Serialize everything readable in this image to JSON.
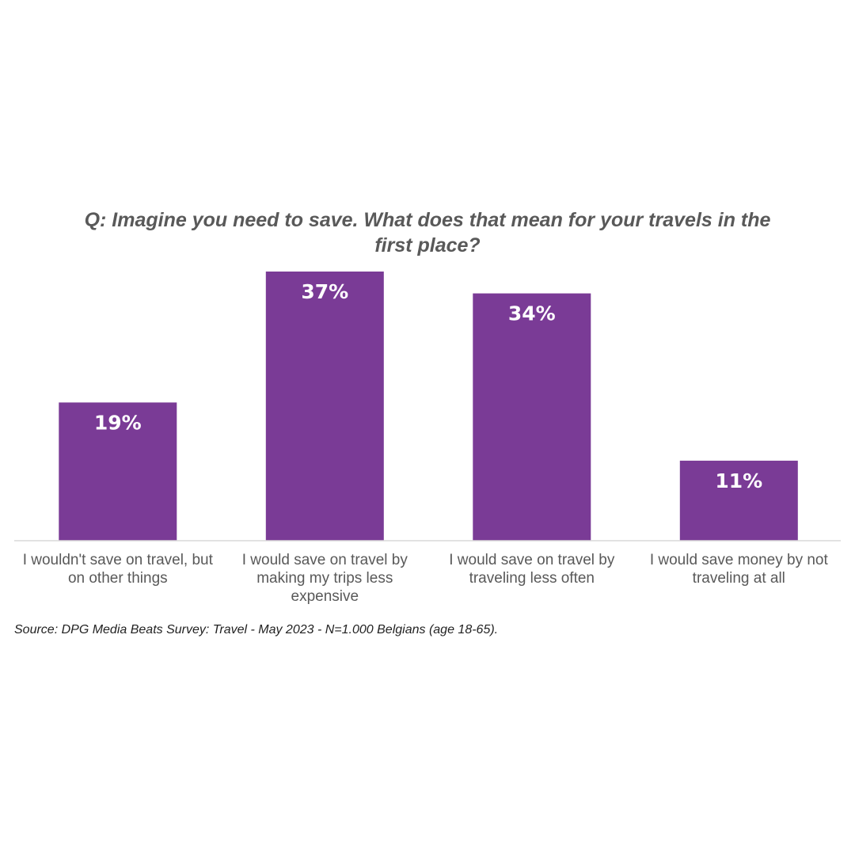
{
  "chart_data": {
    "type": "bar",
    "title": "Q: Imagine you need to save. What does that mean for your travels in the first place?",
    "categories": [
      "I wouldn't save on travel, but on other things",
      "I would save on travel by making my trips less expensive",
      "I would save on travel by traveling less often",
      "I would save money by not traveling at all"
    ],
    "category_lines": [
      [
        "I wouldn't save on travel, but",
        "on other things"
      ],
      [
        "I would save on travel by",
        "making my trips less",
        "expensive"
      ],
      [
        "I would save on travel by",
        "traveling less often"
      ],
      [
        "I would save money by not",
        "traveling at all"
      ]
    ],
    "values": [
      19,
      37,
      34,
      11
    ],
    "data_labels": [
      "19%",
      "37%",
      "34%",
      "11%"
    ],
    "unit": "%",
    "ylim": [
      0,
      37
    ],
    "grid": false,
    "legend": "none",
    "colors": {
      "bar": "#7a3b96",
      "label": "#ffffff",
      "axis": "#d9d9d9",
      "text": "#595959"
    }
  },
  "source": "Source: DPG Media Beats Survey: Travel - May 2023 - N=1.000 Belgians (age 18-65)."
}
